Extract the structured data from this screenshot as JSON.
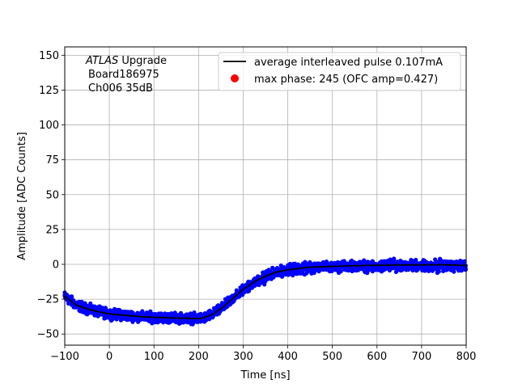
{
  "chart_data": {
    "type": "scatter",
    "xlabel": "Time [ns]",
    "ylabel": "Amplitude [ADC Counts]",
    "xlim": [
      -100,
      800
    ],
    "ylim": [
      -58,
      156
    ],
    "grid": true,
    "x_ticks": [
      -100,
      0,
      100,
      200,
      300,
      400,
      500,
      600,
      700,
      800
    ],
    "x_tick_labels": [
      "−100",
      "0",
      "100",
      "200",
      "300",
      "400",
      "500",
      "600",
      "700",
      "800"
    ],
    "y_ticks": [
      -50,
      -25,
      0,
      25,
      50,
      75,
      100,
      125,
      150
    ],
    "y_tick_labels": [
      "−50",
      "−25",
      "0",
      "25",
      "50",
      "75",
      "100",
      "125",
      "150"
    ],
    "annotation": {
      "line1_italic": "ATLAS",
      "line1_rest": " Upgrade",
      "line2": "Board186975",
      "line3": "Ch006 35dB"
    },
    "legend": {
      "placement": "top-right",
      "entries": [
        {
          "label": "average interleaved pulse 0.107mA",
          "kind": "line",
          "color": "#000000"
        },
        {
          "label": "max phase: 245 (OFC amp=0.427)",
          "kind": "marker",
          "color": "#ff0000"
        }
      ]
    },
    "series": [
      {
        "name": "average interleaved pulse 0.107mA",
        "color": "#000000",
        "x": [
          -100,
          -75,
          -50,
          -25,
          0,
          25,
          50,
          75,
          100,
          125,
          150,
          175,
          200,
          215,
          230,
          250,
          275,
          300,
          325,
          350,
          375,
          400,
          425,
          450,
          500,
          550,
          600,
          650,
          700,
          750,
          800
        ],
        "y": [
          -23,
          -29,
          -32,
          -34,
          -35.5,
          -36.3,
          -37,
          -37.6,
          -38,
          -38.3,
          -38.5,
          -38.7,
          -39,
          -38,
          -36,
          -32,
          -25,
          -18,
          -12.5,
          -8.5,
          -5.5,
          -4,
          -3,
          -2,
          -1.5,
          -1,
          -0.7,
          -0.5,
          -0.4,
          -0.3,
          -0.8
        ]
      },
      {
        "name": "data points",
        "color": "#0000ff",
        "spread": 5
      }
    ]
  }
}
